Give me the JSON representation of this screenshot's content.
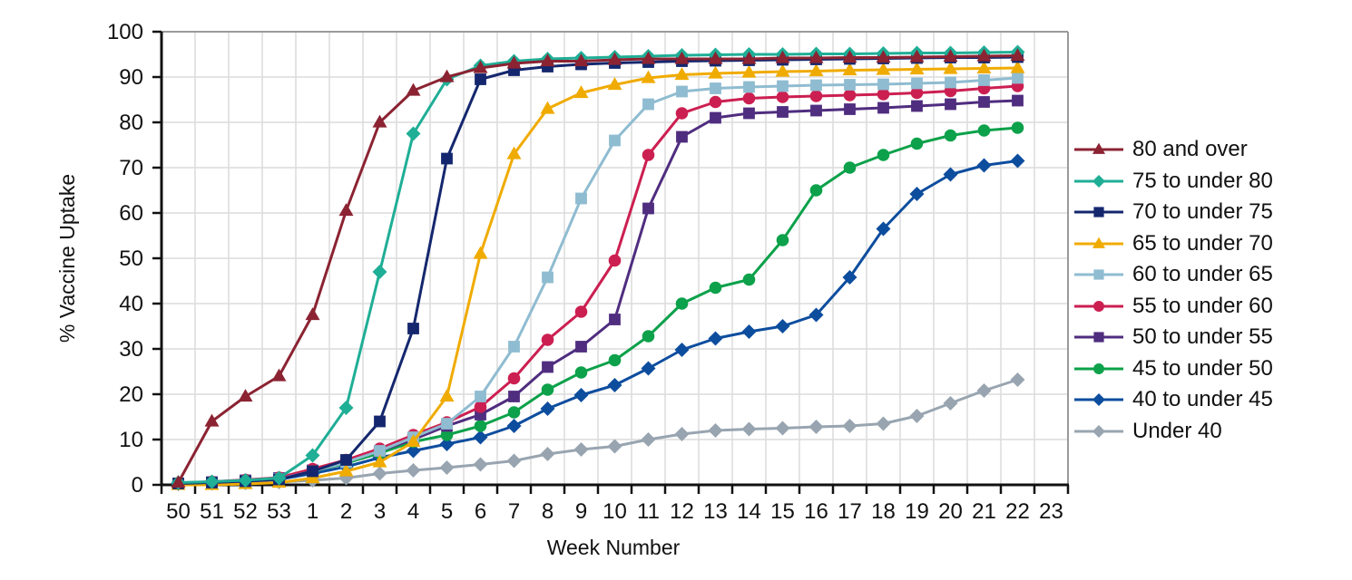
{
  "chart_data": {
    "type": "line",
    "title": "",
    "xlabel": "Week Number",
    "ylabel": "% Vaccine Uptake",
    "ylim": [
      0,
      100
    ],
    "yticks": [
      0,
      10,
      20,
      30,
      40,
      50,
      60,
      70,
      80,
      90,
      100
    ],
    "grid": true,
    "legend_position": "right",
    "categories": [
      "50",
      "51",
      "52",
      "53",
      "1",
      "2",
      "3",
      "4",
      "5",
      "6",
      "7",
      "8",
      "9",
      "10",
      "11",
      "12",
      "13",
      "14",
      "15",
      "16",
      "17",
      "18",
      "19",
      "20",
      "21",
      "22",
      "23"
    ],
    "series": [
      {
        "name": "80 and over",
        "color": "#8b2332",
        "marker": "triangle",
        "values": [
          0.5,
          14,
          19.5,
          24,
          37.5,
          60.5,
          80,
          87,
          90,
          92,
          93,
          93.5,
          93.5,
          93.8,
          94,
          94,
          94,
          94,
          94.2,
          94.2,
          94.3,
          94.3,
          94.4,
          94.5,
          94.6,
          94.7,
          null
        ]
      },
      {
        "name": "75 to under 80",
        "color": "#1fae96",
        "marker": "diamond",
        "values": [
          0.5,
          0.7,
          1,
          1.5,
          6.5,
          17,
          47,
          77.5,
          89.5,
          92.5,
          93.5,
          94,
          94.2,
          94.4,
          94.6,
          94.8,
          94.9,
          95,
          95,
          95.1,
          95.1,
          95.2,
          95.3,
          95.3,
          95.4,
          95.5,
          null
        ]
      },
      {
        "name": "70 to under 75",
        "color": "#14276e",
        "marker": "square",
        "values": [
          0.3,
          0.5,
          0.8,
          1.2,
          3,
          5.5,
          14,
          34.5,
          72,
          89.5,
          91.5,
          92.3,
          92.8,
          93.1,
          93.3,
          93.5,
          93.6,
          93.7,
          93.8,
          93.9,
          94,
          94.1,
          94.2,
          94.3,
          94.3,
          94.4,
          null
        ]
      },
      {
        "name": "65 to under 70",
        "color": "#f0ab00",
        "marker": "triangle",
        "values": [
          0,
          0,
          0.2,
          0.5,
          1.5,
          3,
          5,
          9.5,
          19.5,
          51,
          73,
          83,
          86.5,
          88.3,
          89.8,
          90.5,
          90.8,
          91,
          91.2,
          91.3,
          91.5,
          91.6,
          91.7,
          91.8,
          91.9,
          92,
          null
        ]
      },
      {
        "name": "60 to under 65",
        "color": "#8fbcd1",
        "marker": "square",
        "values": [
          0.3,
          0.5,
          0.8,
          1.3,
          3,
          5,
          7.5,
          10.5,
          13.5,
          19.5,
          30.5,
          45.8,
          63.2,
          76,
          84,
          86.8,
          87.5,
          87.8,
          88,
          88.2,
          88.3,
          88.4,
          88.6,
          88.8,
          89.3,
          89.8,
          null
        ]
      },
      {
        "name": "55 to under 60",
        "color": "#cc1f51",
        "marker": "circle",
        "values": [
          0.4,
          0.7,
          1.1,
          1.6,
          3.5,
          5.5,
          8,
          11,
          13.8,
          17.2,
          23.5,
          32,
          38.2,
          49.5,
          72.8,
          82,
          84.5,
          85.3,
          85.6,
          85.8,
          86,
          86.2,
          86.5,
          86.9,
          87.5,
          88,
          null
        ]
      },
      {
        "name": "50 to under 55",
        "color": "#4f2d7f",
        "marker": "square",
        "values": [
          0.3,
          0.6,
          1,
          1.5,
          3.2,
          5.2,
          7.5,
          10,
          13,
          15.5,
          19.5,
          26,
          30.5,
          36.5,
          61,
          76.8,
          81,
          82,
          82.3,
          82.6,
          82.9,
          83.2,
          83.6,
          84,
          84.5,
          84.8,
          null
        ]
      },
      {
        "name": "45 to under 50",
        "color": "#0ca14a",
        "marker": "circle",
        "values": [
          0.3,
          0.6,
          1,
          1.4,
          3,
          4.8,
          7,
          9.5,
          11,
          13,
          16,
          21,
          24.8,
          27.5,
          32.8,
          40,
          43.5,
          45.3,
          54,
          65,
          70,
          72.8,
          75.3,
          77.1,
          78.2,
          78.8,
          null
        ]
      },
      {
        "name": "40 to under 45",
        "color": "#0d4d9e",
        "marker": "diamond",
        "values": [
          0.3,
          0.5,
          0.8,
          1.2,
          2.5,
          4,
          6,
          7.5,
          9,
          10.5,
          13,
          16.8,
          19.8,
          22,
          25.7,
          29.8,
          32.3,
          33.8,
          35,
          37.5,
          45.8,
          56.5,
          64.2,
          68.5,
          70.5,
          71.5,
          null
        ]
      },
      {
        "name": "Under 40",
        "color": "#98a5b0",
        "marker": "diamond",
        "values": [
          0.2,
          0.3,
          0.4,
          0.6,
          1,
          1.5,
          2.5,
          3.2,
          3.8,
          4.5,
          5.3,
          6.8,
          7.8,
          8.5,
          10,
          11.2,
          12,
          12.3,
          12.5,
          12.8,
          13,
          13.5,
          15.2,
          18,
          20.8,
          23.2,
          null
        ]
      }
    ]
  }
}
